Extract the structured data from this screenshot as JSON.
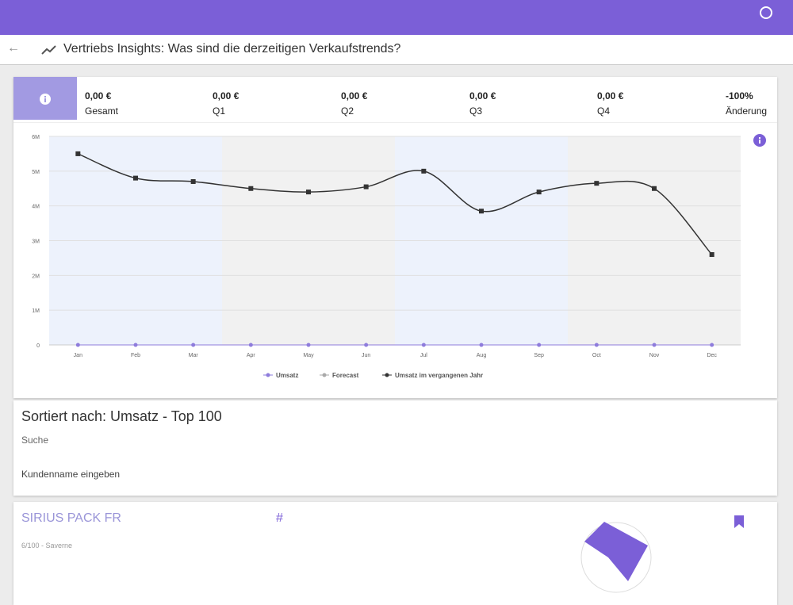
{
  "header": {
    "title": "Vertriebs Insights: Was sind die derzeitigen Verkaufstrends?"
  },
  "kpis": [
    {
      "value": "0,00 €",
      "label": "Gesamt"
    },
    {
      "value": "0,00 €",
      "label": "Q1"
    },
    {
      "value": "0,00 €",
      "label": "Q2"
    },
    {
      "value": "0,00 €",
      "label": "Q3"
    },
    {
      "value": "0,00 €",
      "label": "Q4"
    },
    {
      "value": "-100%",
      "label": "Änderung"
    }
  ],
  "chart_data": {
    "type": "line",
    "categories": [
      "Jan",
      "Feb",
      "Mar",
      "Apr",
      "May",
      "Jun",
      "Jul",
      "Aug",
      "Sep",
      "Oct",
      "Nov",
      "Dec"
    ],
    "series": [
      {
        "name": "Umsatz",
        "color": "#8e7cdc",
        "values": [
          0,
          0,
          0,
          0,
          0,
          0,
          0,
          0,
          0,
          0,
          0,
          0
        ]
      },
      {
        "name": "Forecast",
        "color": "#aaaaaa",
        "values": [
          null,
          null,
          null,
          null,
          null,
          null,
          null,
          null,
          null,
          null,
          null,
          null
        ]
      },
      {
        "name": "Umsatz im vergangenen Jahr",
        "color": "#333333",
        "values": [
          5500000,
          4800000,
          4700000,
          4500000,
          4400000,
          4550000,
          5000000,
          3850000,
          4400000,
          4650000,
          4500000,
          2600000
        ]
      }
    ],
    "ylim": [
      0,
      6000000
    ],
    "yticks": [
      0,
      {
        "value": 1000000,
        "label": "1M"
      },
      {
        "value": 2000000,
        "label": "2M"
      },
      {
        "value": 3000000,
        "label": "3M"
      },
      {
        "value": 4000000,
        "label": "4M"
      },
      {
        "value": 5000000,
        "label": "5M"
      },
      {
        "value": 6000000,
        "label": "6M"
      }
    ],
    "grid": true,
    "legend": "bottom"
  },
  "search": {
    "title": "Sortiert nach: Umsatz - Top 100",
    "label": "Suche",
    "placeholder": "Kundenname eingeben"
  },
  "customer": {
    "name": "SIRIUS PACK FR",
    "hash": "#",
    "subtitle": "6/100 - Saverne"
  }
}
